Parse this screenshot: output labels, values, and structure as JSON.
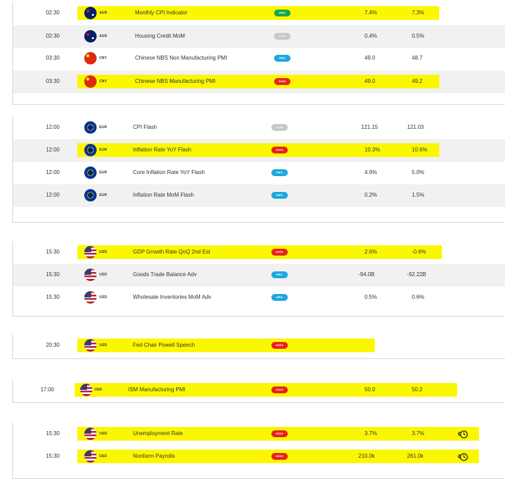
{
  "groups": [
    {
      "rows": [
        {
          "time": "02:30",
          "ccy": "AUD",
          "flag": "aud",
          "event": "Monthly CPI Indicator",
          "impact": "MED",
          "impact_class": "med-green",
          "actual": "7.4%",
          "forecast": "7.3%",
          "highlight": true,
          "alarm": false
        },
        {
          "time": "02:30",
          "ccy": "AUD",
          "flag": "aud",
          "event": "Housing Credit MoM",
          "impact": "LOW",
          "impact_class": "low",
          "actual": "0.4%",
          "forecast": "0.5%",
          "highlight": false,
          "alarm": false
        },
        {
          "time": "03:30",
          "ccy": "CNY",
          "flag": "cny",
          "event": "Chinese NBS Non Manufacturing PMI",
          "impact": "MED",
          "impact_class": "med",
          "actual": "49.0",
          "forecast": "48.7",
          "highlight": false,
          "alarm": false
        },
        {
          "time": "03:30",
          "ccy": "CNY",
          "flag": "cny",
          "event": "Chinese NBS Manufacturing PMI",
          "impact": "HIGH",
          "impact_class": "high",
          "actual": "49.0",
          "forecast": "49.2",
          "highlight": true,
          "alarm": false
        }
      ]
    },
    {
      "rows": [
        {
          "time": "12:00",
          "ccy": "EUR",
          "flag": "eur",
          "event": "CPI Flash",
          "impact": "LOW",
          "impact_class": "low",
          "actual": "121.15",
          "forecast": "121.03",
          "highlight": false,
          "alarm": false
        },
        {
          "time": "12:00",
          "ccy": "EUR",
          "flag": "eur",
          "event": "Inflation Rate YoY Flash",
          "impact": "HIGH",
          "impact_class": "high",
          "actual": "10.3%",
          "forecast": "10.6%",
          "highlight": true,
          "alarm": false
        },
        {
          "time": "12:00",
          "ccy": "EUR",
          "flag": "eur",
          "event": "Core Inflation Rate YoY Flash",
          "impact": "MED",
          "impact_class": "med",
          "actual": "4.9%",
          "forecast": "5.0%",
          "highlight": false,
          "alarm": false
        },
        {
          "time": "12:00",
          "ccy": "EUR",
          "flag": "eur",
          "event": "Inflation Rate MoM Flash",
          "impact": "MED",
          "impact_class": "med",
          "actual": "0.2%",
          "forecast": "1.5%",
          "highlight": false,
          "alarm": false
        }
      ]
    },
    {
      "rows": [
        {
          "time": "15:30",
          "ccy": "USD",
          "flag": "usd",
          "event": "GDP Growth Rate QoQ 2nd Est",
          "impact": "HIGH",
          "impact_class": "high",
          "actual": "2.6%",
          "forecast": "-0.6%",
          "highlight": true,
          "alarm": false
        },
        {
          "time": "15:30",
          "ccy": "USD",
          "flag": "usd",
          "event": "Goods Trade Balance Adv",
          "impact": "MED",
          "impact_class": "med",
          "actual": "-94.0B",
          "forecast": "-92.22B",
          "highlight": false,
          "alarm": false
        },
        {
          "time": "15:30",
          "ccy": "USD",
          "flag": "usd",
          "event": "Wholesale Inventories MoM Adv",
          "impact": "MED",
          "impact_class": "med",
          "actual": "0.5%",
          "forecast": "0.6%",
          "highlight": false,
          "alarm": false
        }
      ]
    },
    {
      "rows": [
        {
          "time": "20:30",
          "ccy": "USD",
          "flag": "usd",
          "event": "Fed Chair Powell Speech",
          "impact": "HIGH",
          "impact_class": "high",
          "actual": "",
          "forecast": "",
          "highlight": true,
          "alarm": false
        }
      ]
    },
    {
      "rows": [
        {
          "time": "17:00",
          "ccy": "USD",
          "flag": "usd",
          "event": "ISM Manufacturing PMI",
          "impact": "HIGH",
          "impact_class": "high",
          "actual": "50.0",
          "forecast": "50.2",
          "highlight": true,
          "alarm": false
        }
      ]
    },
    {
      "rows": [
        {
          "time": "15:30",
          "ccy": "USD",
          "flag": "usd",
          "event": "Unemployment Rate",
          "impact": "HIGH",
          "impact_class": "high",
          "actual": "3.7%",
          "forecast": "3.7%",
          "highlight": true,
          "alarm": true
        },
        {
          "time": "15:30",
          "ccy": "USD",
          "flag": "usd",
          "event": "Nonfarm Payrolls",
          "impact": "HIGH",
          "impact_class": "high",
          "actual": "210.0k",
          "forecast": "261.0k",
          "highlight": true,
          "alarm": true
        }
      ]
    }
  ],
  "colors": {
    "highlight": "#fbf700",
    "high": "#e8231c",
    "med": "#1ea7e0",
    "med_green": "#1aa84a",
    "low": "#c7c7c7"
  },
  "icons": {
    "alarm": "alarm-clock-icon"
  }
}
